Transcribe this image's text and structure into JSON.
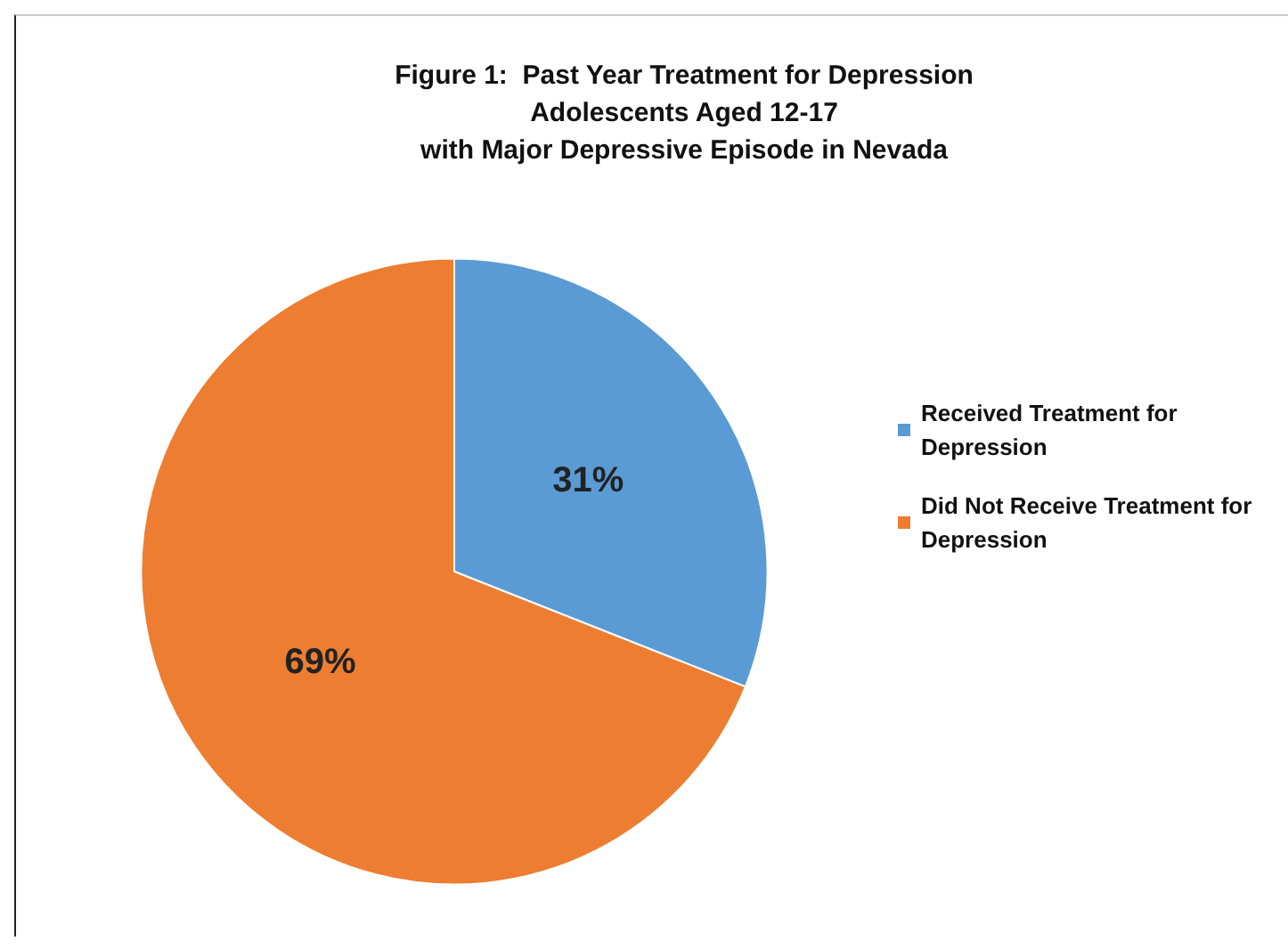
{
  "chart_data": {
    "type": "pie",
    "title": "Figure 1:  Past Year Treatment for Depression\nAdolescents Aged 12-17\nwith Major Depressive Episode in Nevada",
    "categories": [
      "Received Treatment for Depression",
      "Did Not Receive Treatment for Depression"
    ],
    "values": [
      31,
      69
    ],
    "colors": [
      "#5b9bd5",
      "#ed7d31"
    ],
    "value_labels": [
      "31%",
      "69%"
    ],
    "legend": "right"
  }
}
